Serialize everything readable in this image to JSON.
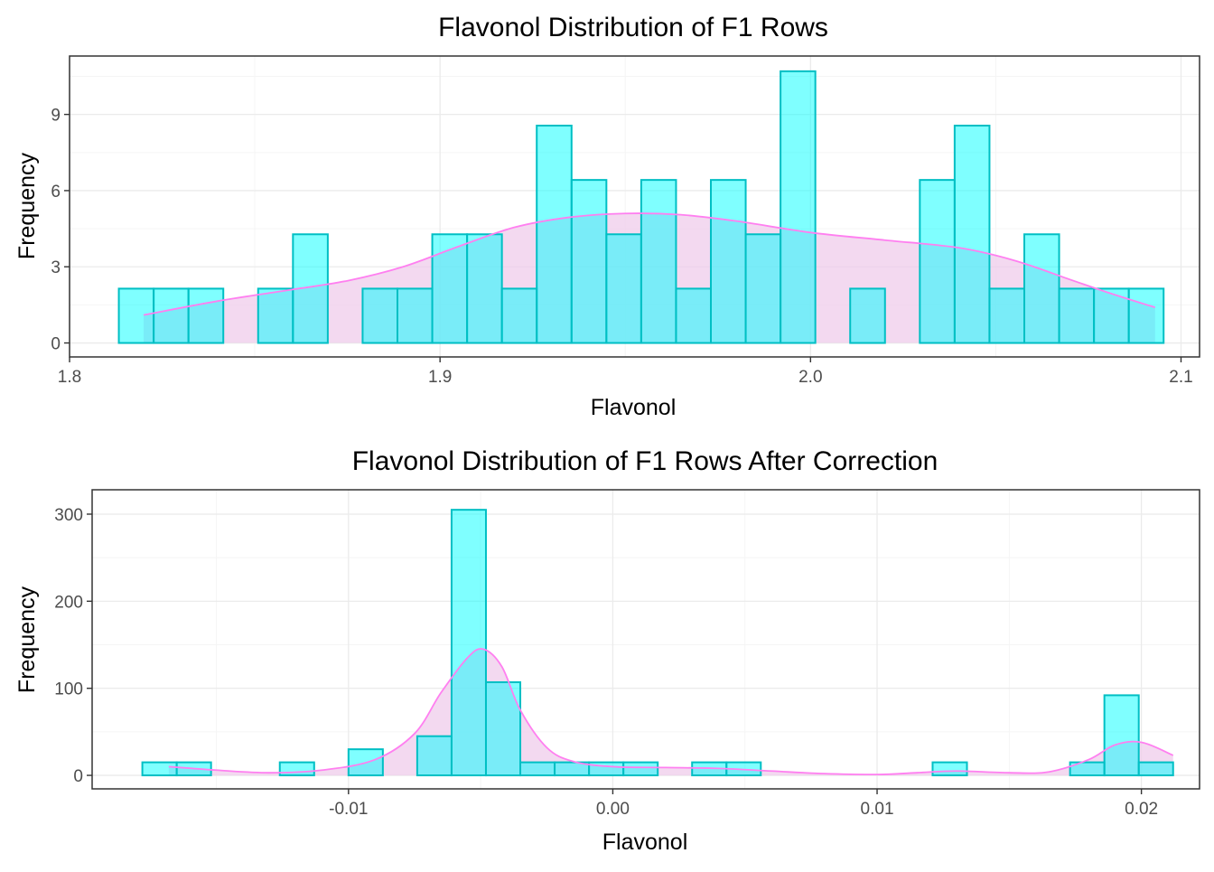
{
  "colors": {
    "bar_fill": "#00FFFF",
    "bar_stroke": "#00BFC4",
    "density_line": "#FF7FF0",
    "density_fill": "#EFCCEB",
    "grid_major": "#EBEBEB",
    "grid_minor": "#F5F5F5",
    "panel_border": "#333333"
  },
  "chart_data": [
    {
      "type": "bar",
      "title": "Flavonol Distribution of F1 Rows",
      "xlabel": "Flavonol",
      "ylabel": "Frequency",
      "xlim": [
        1.8,
        2.105
      ],
      "ylim": [
        -0.55,
        11.3
      ],
      "xticks": [
        1.8,
        1.9,
        2.0,
        2.1
      ],
      "xtick_labels": [
        "1.8",
        "1.9",
        "2.0",
        "2.1"
      ],
      "yticks": [
        0,
        3,
        6,
        9
      ],
      "ytick_labels": [
        "0",
        "3",
        "6",
        "9"
      ],
      "bin_width": 0.0094,
      "bin_start": 1.8133,
      "bin_counts": [
        2,
        2,
        2,
        0,
        2,
        4,
        0,
        2,
        2,
        4,
        4,
        2,
        8,
        6,
        4,
        6,
        2,
        6,
        4,
        10,
        0,
        2,
        0,
        6,
        8,
        2,
        4,
        2,
        2,
        2
      ],
      "bar_height_scale": 1.07,
      "density_x": [
        1.82,
        1.84,
        1.86,
        1.875,
        1.89,
        1.905,
        1.92,
        1.935,
        1.95,
        1.965,
        1.98,
        2.0,
        2.02,
        2.04,
        2.055,
        2.07,
        2.08,
        2.093
      ],
      "density_y": [
        1.1,
        1.65,
        2.1,
        2.45,
        3.0,
        3.8,
        4.55,
        4.95,
        5.1,
        5.05,
        4.8,
        4.35,
        4.05,
        3.75,
        3.25,
        2.5,
        2.0,
        1.4
      ]
    },
    {
      "type": "bar",
      "title": "Flavonol Distribution of F1 Rows After Correction",
      "xlabel": "Flavonol",
      "ylabel": "Frequency",
      "xlim": [
        -0.0197,
        0.0222
      ],
      "ylim": [
        -15.5,
        328
      ],
      "xticks": [
        -0.01,
        0.0,
        0.01,
        0.02
      ],
      "xtick_labels": [
        "-0.01",
        "0.00",
        "0.01",
        "0.02"
      ],
      "yticks": [
        0,
        100,
        200,
        300
      ],
      "ytick_labels": [
        "0",
        "100",
        "200",
        "300"
      ],
      "bin_width": 0.0013,
      "bin_start": -0.0178,
      "bin_counts": [
        15,
        15,
        0,
        0,
        15,
        0,
        30,
        0,
        45,
        305,
        107,
        15,
        15,
        15,
        15,
        0,
        15,
        15,
        0,
        0,
        0,
        0,
        0,
        15,
        0,
        0,
        0,
        15,
        92,
        15
      ],
      "bar_height_scale": 1,
      "density_x": [
        -0.0168,
        -0.015,
        -0.013,
        -0.011,
        -0.009,
        -0.0075,
        -0.0065,
        -0.0055,
        -0.0049,
        -0.0042,
        -0.0035,
        -0.0025,
        -0.0015,
        0.0,
        0.002,
        0.004,
        0.006,
        0.008,
        0.01,
        0.0115,
        0.013,
        0.015,
        0.0165,
        0.018,
        0.019,
        0.02,
        0.0212
      ],
      "density_y": [
        10,
        6,
        3,
        6,
        18,
        48,
        95,
        135,
        145,
        125,
        75,
        32,
        16,
        10,
        9,
        8,
        5,
        2,
        1,
        3,
        5,
        3,
        4,
        18,
        35,
        38,
        23
      ]
    }
  ]
}
